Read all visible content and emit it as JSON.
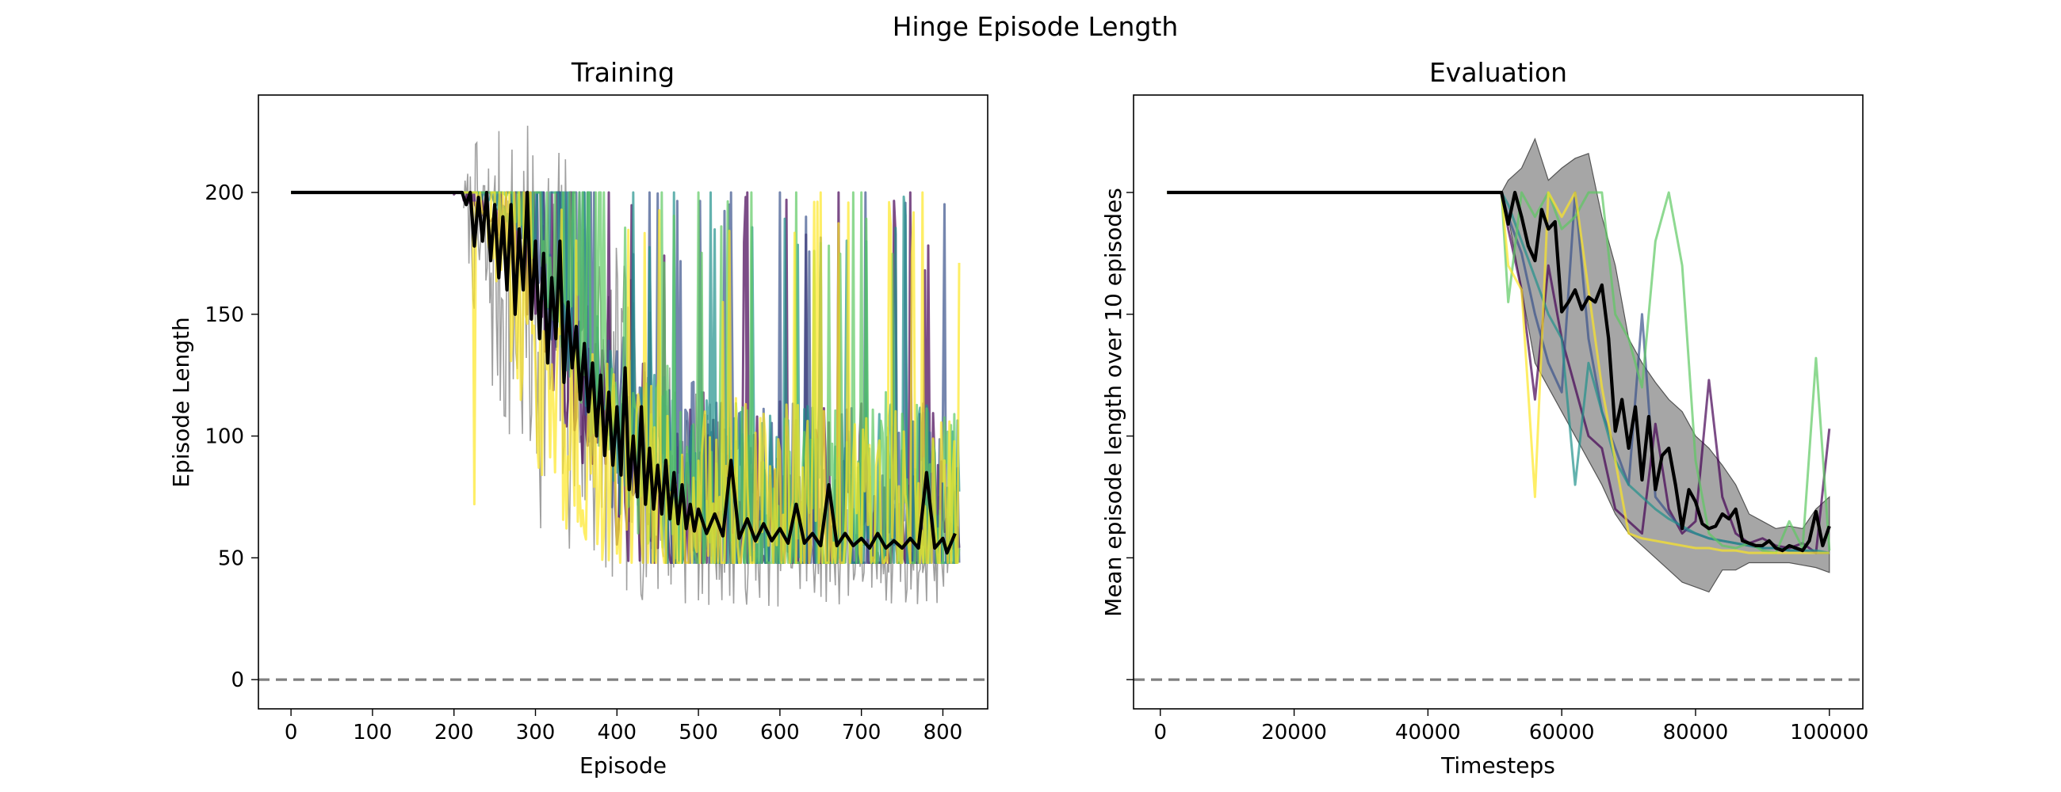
{
  "figure": {
    "title": "Hinge Episode Length"
  },
  "chart_data": [
    {
      "type": "line",
      "title": "Training",
      "xlabel": "Episode",
      "ylabel": "Episode Length",
      "xlim": [
        -40,
        855
      ],
      "ylim": [
        -12,
        240
      ],
      "xticks": [
        0,
        100,
        200,
        300,
        400,
        500,
        600,
        700,
        800
      ],
      "yticks": [
        0,
        50,
        100,
        150,
        200
      ],
      "grid": false,
      "legend": "none",
      "reference_line": {
        "y": 0,
        "style": "dashed",
        "color": "#808080"
      },
      "series": [
        {
          "color": "#440154",
          "pattern": {
            "phase": 0.0,
            "spikes": [
              [
                390,
                200
              ],
              [
                560,
                200
              ],
              [
                672,
                200
              ],
              [
                760,
                200
              ],
              [
                778,
                168
              ],
              [
                815,
                77
              ]
            ]
          },
          "x": [
            0,
            200,
            250,
            300,
            350,
            400,
            450,
            500,
            550,
            600,
            650,
            700,
            750,
            800,
            820
          ],
          "y": [
            200,
            200,
            190,
            150,
            120,
            95,
            75,
            65,
            60,
            58,
            57,
            56,
            55,
            55,
            54
          ]
        },
        {
          "color": "#3b528b",
          "pattern": {
            "phase": 1.3,
            "spikes": [
              [
                440,
                200
              ],
              [
                540,
                200
              ],
              [
                600,
                200
              ],
              [
                705,
                200
              ],
              [
                742,
                70
              ]
            ]
          },
          "x": [
            0,
            240,
            290,
            340,
            390,
            440,
            490,
            540,
            590,
            640,
            690,
            740,
            790,
            820
          ],
          "y": [
            200,
            200,
            180,
            140,
            110,
            85,
            70,
            62,
            58,
            56,
            55,
            55,
            54,
            54
          ]
        },
        {
          "color": "#21918c",
          "pattern": {
            "phase": 2.6,
            "spikes": [
              [
                420,
                200
              ],
              [
                470,
                200
              ],
              [
                515,
                200
              ],
              [
                612,
                72
              ],
              [
                690,
                70
              ]
            ]
          },
          "x": [
            0,
            230,
            280,
            330,
            380,
            430,
            480,
            530,
            580,
            630,
            680,
            730,
            780,
            820
          ],
          "y": [
            200,
            200,
            185,
            150,
            115,
            90,
            72,
            63,
            59,
            57,
            56,
            55,
            54,
            54
          ]
        },
        {
          "color": "#5ec962",
          "pattern": {
            "phase": 3.9,
            "spikes": [
              [
                455,
                200
              ],
              [
                500,
                200
              ],
              [
                565,
                200
              ],
              [
                620,
                200
              ],
              [
                690,
                200
              ],
              [
                700,
                200
              ],
              [
                730,
                118
              ]
            ]
          },
          "x": [
            0,
            260,
            310,
            360,
            410,
            460,
            510,
            560,
            610,
            660,
            710,
            760,
            810,
            820
          ],
          "y": [
            200,
            200,
            170,
            135,
            105,
            82,
            68,
            61,
            58,
            56,
            55,
            54,
            54,
            54
          ]
        },
        {
          "color": "#fde725",
          "pattern": {
            "phase": 5.2,
            "spikes": [
              [
                225,
                72
              ],
              [
                250,
                200
              ],
              [
                530,
                155
              ],
              [
                650,
                200
              ],
              [
                775,
                200
              ]
            ]
          },
          "x": [
            0,
            220,
            240,
            260,
            280,
            300,
            340,
            380,
            420,
            460,
            500,
            550,
            600,
            650,
            700,
            750,
            800,
            820
          ],
          "y": [
            200,
            200,
            185,
            160,
            140,
            120,
            100,
            85,
            75,
            68,
            63,
            60,
            58,
            57,
            56,
            55,
            55,
            54
          ]
        }
      ],
      "band": {
        "color": "#808080",
        "x": [
          212,
          230,
          260,
          300,
          340,
          380,
          420,
          460,
          500,
          550,
          600,
          650,
          700,
          750,
          800,
          818
        ],
        "upper": [
          205,
          225,
          228,
          228,
          222,
          190,
          165,
          140,
          120,
          100,
          92,
          88,
          86,
          84,
          82,
          80
        ],
        "lower": [
          190,
          130,
          95,
          65,
          45,
          35,
          32,
          30,
          30,
          30,
          30,
          30,
          30,
          30,
          30,
          32
        ]
      },
      "mean": {
        "color": "#000000",
        "x": [
          0,
          210,
          215,
          220,
          225,
          230,
          235,
          240,
          245,
          250,
          255,
          260,
          265,
          270,
          275,
          280,
          285,
          290,
          295,
          300,
          305,
          310,
          315,
          320,
          325,
          330,
          335,
          340,
          345,
          350,
          355,
          360,
          365,
          370,
          375,
          380,
          385,
          390,
          395,
          400,
          405,
          410,
          415,
          420,
          425,
          430,
          435,
          440,
          445,
          450,
          455,
          460,
          465,
          470,
          475,
          480,
          485,
          490,
          495,
          500,
          510,
          520,
          530,
          540,
          550,
          560,
          570,
          580,
          590,
          600,
          610,
          620,
          630,
          640,
          650,
          660,
          670,
          680,
          690,
          700,
          710,
          720,
          730,
          740,
          750,
          760,
          770,
          780,
          790,
          800,
          805,
          810,
          815
        ],
        "y": [
          200,
          200,
          195,
          200,
          178,
          198,
          180,
          200,
          172,
          195,
          165,
          190,
          160,
          195,
          150,
          185,
          160,
          200,
          148,
          180,
          140,
          175,
          130,
          165,
          140,
          180,
          122,
          155,
          128,
          145,
          115,
          138,
          110,
          130,
          100,
          125,
          92,
          118,
          88,
          112,
          84,
          128,
          78,
          100,
          75,
          112,
          72,
          95,
          70,
          88,
          68,
          90,
          66,
          85,
          64,
          80,
          62,
          72,
          61,
          70,
          60,
          68,
          59,
          90,
          58,
          66,
          57,
          64,
          57,
          62,
          56,
          72,
          56,
          60,
          55,
          80,
          55,
          60,
          55,
          58,
          54,
          60,
          54,
          57,
          54,
          58,
          54,
          85,
          54,
          58,
          52,
          56,
          60
        ]
      }
    },
    {
      "type": "line",
      "title": "Evaluation",
      "xlabel": "Timesteps",
      "ylabel": "Mean episode length over 10 episodes",
      "xlim": [
        -4000,
        105000
      ],
      "ylim": [
        -12,
        240
      ],
      "xticks": [
        0,
        20000,
        40000,
        60000,
        80000,
        100000
      ],
      "yticks": [
        0,
        50,
        100,
        150,
        200
      ],
      "show_ytick_labels": false,
      "grid": false,
      "legend": "none",
      "reference_line": {
        "y": 0,
        "style": "dashed",
        "color": "#808080"
      },
      "series": [
        {
          "color": "#440154",
          "x": [
            1000,
            51000,
            52000,
            54000,
            56000,
            58000,
            60000,
            62000,
            64000,
            66000,
            68000,
            70000,
            72000,
            74000,
            76000,
            78000,
            80000,
            82000,
            84000,
            86000,
            88000,
            90000,
            92000,
            94000,
            96000,
            98000,
            100000
          ],
          "y": [
            200,
            200,
            185,
            160,
            115,
            170,
            140,
            120,
            100,
            95,
            70,
            65,
            60,
            105,
            70,
            60,
            65,
            123,
            75,
            60,
            56,
            58,
            55,
            54,
            56,
            52,
            103
          ]
        },
        {
          "color": "#3b528b",
          "x": [
            1000,
            51000,
            52000,
            54000,
            56000,
            58000,
            60000,
            62000,
            64000,
            66000,
            68000,
            70000,
            72000,
            74000,
            76000,
            78000,
            80000,
            82000,
            84000,
            86000,
            88000,
            90000,
            92000,
            94000,
            96000,
            98000,
            100000
          ],
          "y": [
            200,
            200,
            190,
            175,
            150,
            130,
            118,
            200,
            140,
            110,
            95,
            80,
            150,
            75,
            68,
            62,
            60,
            58,
            57,
            56,
            55,
            54,
            54,
            53,
            53,
            52,
            52
          ]
        },
        {
          "color": "#21918c",
          "x": [
            1000,
            51000,
            52000,
            54000,
            56000,
            58000,
            60000,
            62000,
            64000,
            66000,
            68000,
            70000,
            72000,
            74000,
            76000,
            78000,
            80000,
            82000,
            84000,
            86000,
            88000,
            90000,
            92000,
            94000,
            96000,
            98000,
            100000
          ],
          "y": [
            200,
            200,
            195,
            180,
            165,
            150,
            140,
            80,
            130,
            110,
            90,
            80,
            75,
            70,
            66,
            63,
            60,
            58,
            57,
            56,
            55,
            54,
            54,
            53,
            53,
            53,
            52
          ]
        },
        {
          "color": "#5ec962",
          "x": [
            1000,
            51000,
            52000,
            54000,
            56000,
            58000,
            60000,
            62000,
            64000,
            66000,
            68000,
            70000,
            72000,
            74000,
            76000,
            78000,
            80000,
            82000,
            84000,
            86000,
            88000,
            90000,
            92000,
            94000,
            96000,
            98000,
            100000
          ],
          "y": [
            200,
            200,
            155,
            200,
            190,
            200,
            185,
            190,
            200,
            200,
            150,
            140,
            120,
            180,
            200,
            170,
            90,
            60,
            55,
            54,
            56,
            53,
            52,
            65,
            54,
            132,
            53
          ]
        },
        {
          "color": "#fde725",
          "x": [
            1000,
            51000,
            52000,
            54000,
            56000,
            58000,
            60000,
            62000,
            64000,
            66000,
            68000,
            70000,
            72000,
            74000,
            76000,
            78000,
            80000,
            82000,
            84000,
            86000,
            88000,
            90000,
            92000,
            94000,
            96000,
            98000,
            100000
          ],
          "y": [
            200,
            200,
            170,
            160,
            75,
            200,
            190,
            200,
            160,
            120,
            90,
            60,
            58,
            57,
            56,
            55,
            54,
            54,
            53,
            53,
            52,
            52,
            52,
            52,
            52,
            52,
            52
          ]
        }
      ],
      "band": {
        "color": "#808080",
        "x": [
          51000,
          52000,
          54000,
          56000,
          58000,
          60000,
          62000,
          64000,
          66000,
          68000,
          70000,
          72000,
          74000,
          76000,
          78000,
          80000,
          82000,
          84000,
          86000,
          88000,
          90000,
          92000,
          94000,
          96000,
          98000,
          100000
        ],
        "upper": [
          200,
          205,
          210,
          222,
          205,
          210,
          214,
          216,
          190,
          170,
          140,
          130,
          122,
          115,
          110,
          100,
          95,
          88,
          80,
          68,
          65,
          62,
          63,
          62,
          70,
          75
        ],
        "lower": [
          200,
          190,
          160,
          130,
          120,
          110,
          100,
          90,
          80,
          68,
          60,
          55,
          50,
          45,
          40,
          38,
          36,
          45,
          45,
          48,
          48,
          48,
          48,
          47,
          46,
          44
        ]
      },
      "mean": {
        "color": "#000000",
        "x": [
          1000,
          51000,
          52000,
          53000,
          54000,
          55000,
          56000,
          57000,
          58000,
          59000,
          60000,
          61000,
          62000,
          63000,
          64000,
          65000,
          66000,
          67000,
          68000,
          69000,
          70000,
          71000,
          72000,
          73000,
          74000,
          75000,
          76000,
          77000,
          78000,
          79000,
          80000,
          81000,
          82000,
          83000,
          84000,
          85000,
          86000,
          87000,
          88000,
          89000,
          90000,
          91000,
          92000,
          93000,
          94000,
          95000,
          96000,
          97000,
          98000,
          99000,
          100000
        ],
        "y": [
          200,
          200,
          187,
          200,
          190,
          178,
          172,
          193,
          185,
          188,
          151,
          155,
          160,
          152,
          157,
          155,
          162,
          140,
          102,
          115,
          95,
          112,
          82,
          108,
          78,
          92,
          95,
          80,
          62,
          78,
          73,
          64,
          62,
          63,
          68,
          66,
          70,
          57,
          56,
          55,
          55,
          57,
          54,
          53,
          55,
          54,
          53,
          57,
          69,
          55,
          63
        ]
      }
    }
  ]
}
